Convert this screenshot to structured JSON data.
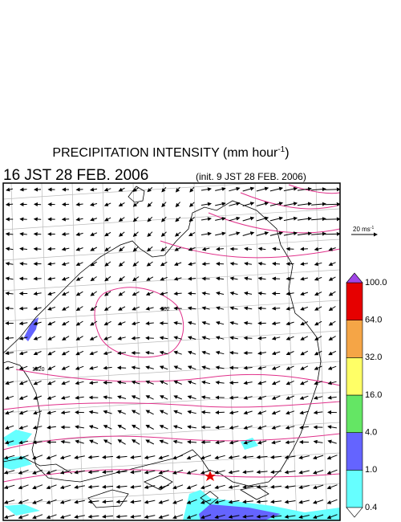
{
  "title": {
    "text": "PRECIPITATION INTENSITY (mm hour",
    "superscript": "-1",
    "close": ")"
  },
  "valid_time": "16 JST 28 FEB. 2006",
  "init_time": "(init. 9 JST 28 FEB. 2006)",
  "vector_legend": {
    "text": "20 ms",
    "superscript": "-1"
  },
  "contour_labels": [
    "1020",
    "102"
  ],
  "colorbar": {
    "levels": [
      "0.4",
      "1.0",
      "4.0",
      "16.0",
      "32.0",
      "64.0",
      "100.0"
    ],
    "colors": [
      "#66ffff",
      "#6464ff",
      "#64e664",
      "#ffff66",
      "#f5a546",
      "#e60000"
    ],
    "over_color": "#a046e6",
    "under_color": "#ffffff"
  }
}
